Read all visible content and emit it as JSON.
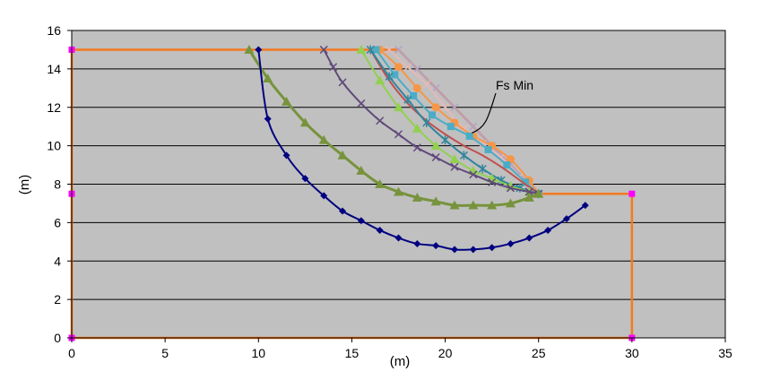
{
  "chart_data": {
    "type": "scatter",
    "title": "",
    "xlabel": "(m)",
    "ylabel": "(m)",
    "xlim": [
      0,
      35
    ],
    "ylim": [
      0,
      16
    ],
    "xticks": [
      0,
      5,
      10,
      15,
      20,
      25,
      30,
      35
    ],
    "yticks": [
      0,
      2,
      4,
      6,
      8,
      10,
      12,
      14,
      16
    ],
    "grid": "horizontal",
    "plot_background": "#c0c0c0",
    "annotation": {
      "text": "Fs Min",
      "x": 22.3,
      "y": 10.2
    },
    "slope_profile": {
      "color": "#f47920",
      "marker_color": "#ff00ff",
      "x": [
        0,
        30,
        30,
        25,
        17.5,
        0,
        0
      ],
      "y": [
        0,
        0,
        7.5,
        7.5,
        15,
        15,
        0
      ],
      "markers_x": [
        0,
        0,
        0,
        30,
        30
      ],
      "markers_y": [
        0,
        7.5,
        15,
        7.5,
        0
      ]
    },
    "series": [
      {
        "color": "#000080",
        "marker": "diamond",
        "x": [
          10.0,
          10.5,
          11.5,
          12.5,
          13.5,
          14.5,
          15.5,
          16.5,
          17.5,
          18.5,
          19.5,
          20.5,
          21.5,
          22.5,
          23.5,
          24.5,
          25.5,
          26.5,
          27.5
        ],
        "y": [
          15.0,
          11.4,
          9.5,
          8.3,
          7.4,
          6.6,
          6.1,
          5.6,
          5.2,
          4.9,
          4.8,
          4.6,
          4.6,
          4.7,
          4.9,
          5.2,
          5.6,
          6.2,
          6.9
        ]
      },
      {
        "color": "#77933c",
        "marker": "triangle",
        "x": [
          9.5,
          10.5,
          11.5,
          12.5,
          13.5,
          14.5,
          15.5,
          16.5,
          17.5,
          18.5,
          19.5,
          20.5,
          21.5,
          22.5,
          23.5,
          24.5,
          25.0
        ],
        "y": [
          15.0,
          13.5,
          12.3,
          11.2,
          10.3,
          9.5,
          8.7,
          8.0,
          7.6,
          7.3,
          7.1,
          6.9,
          6.9,
          6.9,
          7.0,
          7.3,
          7.5
        ]
      },
      {
        "color": "#604a7b",
        "marker": "x",
        "x": [
          13.5,
          14.0,
          14.5,
          15.5,
          16.5,
          17.5,
          18.5,
          19.5,
          20.5,
          21.5,
          22.5,
          23.5,
          24.5,
          25.0
        ],
        "y": [
          15.0,
          14.1,
          13.3,
          12.2,
          11.3,
          10.6,
          9.9,
          9.4,
          8.9,
          8.5,
          8.1,
          7.8,
          7.6,
          7.5
        ]
      },
      {
        "color": "#92d050",
        "marker": "triangle",
        "x": [
          15.5,
          16.5,
          17.5,
          18.5,
          19.5,
          20.5,
          21.5,
          22.5,
          23.5,
          24.5,
          25.0
        ],
        "y": [
          15.0,
          13.4,
          12.0,
          10.9,
          10.0,
          9.3,
          8.7,
          8.3,
          7.9,
          7.6,
          7.5
        ]
      },
      {
        "color": "#31859c",
        "marker": "star",
        "x": [
          16.0,
          17.0,
          18.0,
          19.0,
          20.0,
          21.0,
          22.0,
          23.0,
          24.0,
          25.0
        ],
        "y": [
          15.0,
          13.6,
          12.4,
          11.2,
          10.3,
          9.5,
          8.8,
          8.2,
          7.8,
          7.5
        ]
      },
      {
        "color": "#c0504d",
        "marker": "none",
        "x": [
          16.0,
          17.0,
          18.0,
          19.0,
          20.0,
          21.0,
          22.0,
          23.0,
          24.0,
          25.0
        ],
        "y": [
          15.0,
          13.4,
          12.2,
          11.3,
          10.6,
          10.0,
          9.5,
          8.9,
          8.2,
          7.5
        ]
      },
      {
        "color": "#4bacc6",
        "marker": "square",
        "x": [
          16.3,
          17.3,
          18.3,
          19.3,
          20.3,
          21.3,
          22.3,
          23.3,
          24.3,
          25.0
        ],
        "y": [
          15.0,
          13.7,
          12.6,
          11.6,
          11.0,
          10.5,
          9.8,
          9.0,
          8.1,
          7.5
        ]
      },
      {
        "color": "#f79646",
        "marker": "circle",
        "x": [
          16.5,
          17.5,
          18.5,
          19.5,
          20.5,
          21.5,
          22.5,
          23.5,
          24.5,
          25.0
        ],
        "y": [
          15.0,
          14.1,
          13.0,
          12.0,
          11.2,
          10.5,
          10.0,
          9.3,
          8.2,
          7.5
        ]
      },
      {
        "color": "#e6b9b8",
        "marker": "x",
        "x": [
          17.0,
          18.0,
          19.0,
          20.0,
          21.0,
          22.0,
          23.0,
          24.0,
          25.0
        ],
        "y": [
          15.0,
          14.1,
          13.2,
          12.0,
          10.9,
          10.1,
          9.4,
          8.4,
          7.5
        ]
      },
      {
        "color": "#b3a2c7",
        "marker": "x",
        "x": [
          17.5,
          18.5,
          19.5,
          20.5,
          21.5,
          22.5,
          23.5,
          24.5,
          25.0
        ],
        "y": [
          15.0,
          14.0,
          13.0,
          12.0,
          11.0,
          10.0,
          9.0,
          8.0,
          7.5
        ]
      }
    ]
  }
}
